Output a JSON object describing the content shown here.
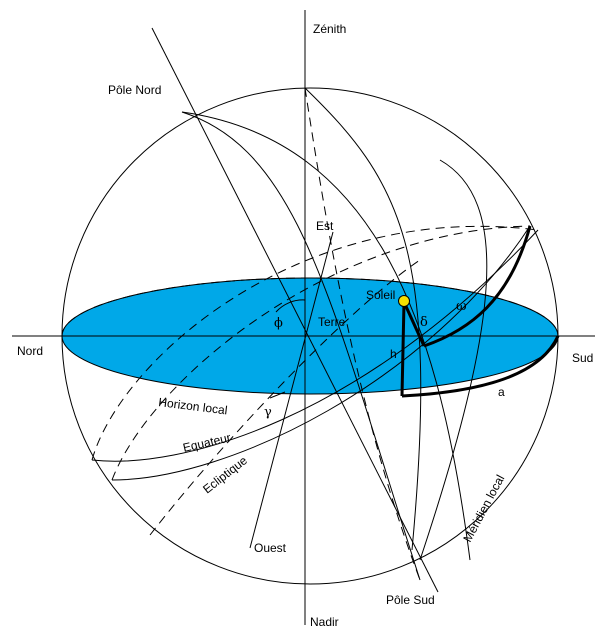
{
  "labels": {
    "zenith": "Zénith",
    "nadir": "Nadir",
    "pole_nord": "Pôle Nord",
    "pole_sud": "Pôle Sud",
    "nord": "Nord",
    "sud": "Sud",
    "est": "Est",
    "ouest": "Ouest",
    "terre": "Terre",
    "soleil": "Soleil",
    "horizon_local": "Horizon local",
    "equateur": "Equateur",
    "ecliptique": "Ecliptique",
    "meridien_local": "Méridien local",
    "phi": "ϕ",
    "gamma": "γ",
    "delta": "δ",
    "omega": "ω",
    "h": "h",
    "a": "a"
  },
  "colors": {
    "horizon_fill": "#00a8e8",
    "sun_fill": "#f6e000",
    "line": "#000000"
  }
}
